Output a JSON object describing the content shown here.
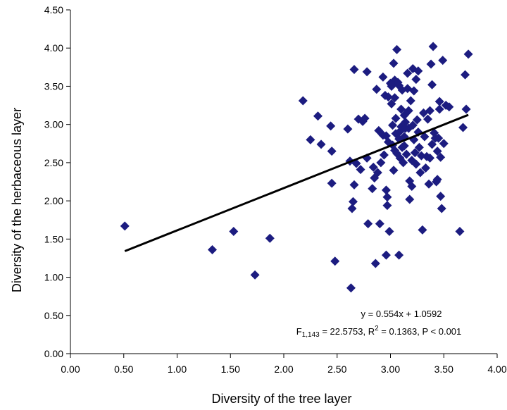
{
  "chart_data": {
    "type": "scatter",
    "xlabel": "Diversity of the tree layer",
    "ylabel": "Diversity of the herbaceous layer",
    "xlim": [
      0,
      4
    ],
    "ylim": [
      0,
      4.5
    ],
    "x_ticks": [
      "0.00",
      "0.50",
      "1.00",
      "1.50",
      "2.00",
      "2.50",
      "3.00",
      "3.50",
      "4.00"
    ],
    "y_ticks": [
      "0.00",
      "0.50",
      "1.00",
      "1.50",
      "2.00",
      "2.50",
      "3.00",
      "3.50",
      "4.00",
      "4.50"
    ],
    "grid": false,
    "marker": "diamond",
    "marker_color": "#1c1c80",
    "trendline": {
      "slope": 0.554,
      "intercept": 1.0592,
      "x_range": [
        0.51,
        3.73
      ],
      "color": "#000000"
    },
    "annotations": {
      "equation": "y = 0.554x + 1.0592",
      "stats_prefix": "F",
      "stats_subscript": "1,143",
      "stats_middle": " = 22.5753, R",
      "stats_superscript": "2",
      "stats_suffix": " = 0.1363, P < 0.001"
    },
    "points": [
      [
        0.51,
        1.67
      ],
      [
        1.33,
        1.36
      ],
      [
        1.53,
        1.6
      ],
      [
        1.73,
        1.03
      ],
      [
        1.87,
        1.51
      ],
      [
        2.18,
        3.31
      ],
      [
        2.25,
        2.8
      ],
      [
        2.32,
        3.11
      ],
      [
        2.35,
        2.74
      ],
      [
        2.44,
        2.98
      ],
      [
        2.45,
        2.65
      ],
      [
        2.45,
        2.23
      ],
      [
        2.48,
        1.21
      ],
      [
        2.6,
        2.94
      ],
      [
        2.62,
        2.52
      ],
      [
        2.63,
        0.86
      ],
      [
        2.64,
        1.9
      ],
      [
        2.65,
        1.99
      ],
      [
        2.66,
        2.21
      ],
      [
        2.66,
        3.72
      ],
      [
        2.68,
        2.49
      ],
      [
        2.7,
        3.07
      ],
      [
        2.72,
        2.41
      ],
      [
        2.74,
        3.04
      ],
      [
        2.76,
        3.08
      ],
      [
        2.78,
        3.69
      ],
      [
        2.78,
        2.56
      ],
      [
        2.79,
        1.7
      ],
      [
        2.83,
        2.16
      ],
      [
        2.84,
        2.44
      ],
      [
        2.85,
        2.3
      ],
      [
        2.86,
        1.18
      ],
      [
        2.87,
        3.46
      ],
      [
        2.88,
        2.37
      ],
      [
        2.89,
        2.92
      ],
      [
        2.9,
        1.7
      ],
      [
        2.91,
        2.5
      ],
      [
        2.93,
        3.62
      ],
      [
        2.93,
        2.86
      ],
      [
        2.94,
        2.6
      ],
      [
        2.95,
        3.38
      ],
      [
        2.96,
        2.14
      ],
      [
        2.96,
        1.29
      ],
      [
        2.97,
        2.05
      ],
      [
        2.97,
        1.94
      ],
      [
        2.98,
        3.36
      ],
      [
        2.98,
        2.77
      ],
      [
        2.99,
        1.6
      ],
      [
        3.0,
        3.54
      ],
      [
        3.01,
        3.5
      ],
      [
        3.01,
        3.27
      ],
      [
        3.02,
        2.99
      ],
      [
        3.02,
        2.73
      ],
      [
        3.03,
        2.4
      ],
      [
        3.03,
        3.8
      ],
      [
        3.04,
        3.58
      ],
      [
        3.04,
        3.35
      ],
      [
        3.05,
        3.08
      ],
      [
        3.05,
        2.88
      ],
      [
        3.06,
        3.98
      ],
      [
        3.06,
        2.62
      ],
      [
        3.07,
        3.55
      ],
      [
        3.08,
        3.51
      ],
      [
        3.08,
        1.29
      ],
      [
        3.09,
        2.91
      ],
      [
        3.09,
        2.56
      ],
      [
        3.1,
        3.2
      ],
      [
        3.1,
        2.97
      ],
      [
        3.11,
        3.45
      ],
      [
        3.11,
        2.7
      ],
      [
        3.12,
        2.5
      ],
      [
        3.13,
        3.12
      ],
      [
        3.13,
        2.84
      ],
      [
        3.14,
        3.03
      ],
      [
        3.15,
        2.61
      ],
      [
        3.16,
        3.67
      ],
      [
        3.17,
        3.18
      ],
      [
        3.17,
        2.95
      ],
      [
        3.18,
        2.26
      ],
      [
        3.18,
        2.02
      ],
      [
        3.19,
        3.31
      ],
      [
        3.2,
        2.53
      ],
      [
        3.2,
        2.19
      ],
      [
        3.21,
        3.73
      ],
      [
        3.22,
        3.44
      ],
      [
        3.22,
        2.8
      ],
      [
        3.23,
        2.63
      ],
      [
        3.24,
        3.59
      ],
      [
        3.24,
        2.48
      ],
      [
        3.25,
        3.06
      ],
      [
        3.26,
        3.7
      ],
      [
        3.27,
        2.7
      ],
      [
        3.28,
        2.37
      ],
      [
        3.29,
        2.59
      ],
      [
        3.3,
        1.62
      ],
      [
        3.31,
        3.15
      ],
      [
        3.32,
        2.84
      ],
      [
        3.33,
        2.43
      ],
      [
        3.34,
        2.58
      ],
      [
        3.35,
        3.07
      ],
      [
        3.36,
        2.22
      ],
      [
        3.37,
        3.18
      ],
      [
        3.37,
        2.56
      ],
      [
        3.38,
        3.79
      ],
      [
        3.39,
        3.52
      ],
      [
        3.39,
        2.74
      ],
      [
        3.4,
        4.02
      ],
      [
        3.41,
        2.89
      ],
      [
        3.42,
        2.82
      ],
      [
        3.43,
        2.25
      ],
      [
        3.44,
        2.28
      ],
      [
        3.44,
        2.65
      ],
      [
        3.45,
        2.82
      ],
      [
        3.46,
        3.2
      ],
      [
        3.46,
        3.3
      ],
      [
        3.47,
        2.06
      ],
      [
        3.47,
        2.57
      ],
      [
        3.48,
        1.9
      ],
      [
        3.49,
        3.84
      ],
      [
        3.5,
        2.75
      ],
      [
        3.52,
        3.25
      ],
      [
        3.55,
        3.23
      ],
      [
        3.65,
        1.6
      ],
      [
        3.68,
        2.96
      ],
      [
        3.7,
        3.65
      ],
      [
        3.71,
        3.2
      ],
      [
        3.73,
        3.92
      ],
      [
        2.96,
        2.85
      ],
      [
        3.14,
        2.95
      ],
      [
        3.26,
        2.9
      ],
      [
        3.01,
        3.52
      ],
      [
        3.08,
        2.81
      ],
      [
        3.13,
        2.72
      ],
      [
        3.21,
        2.99
      ],
      [
        3.04,
        2.66
      ],
      [
        3.16,
        3.47
      ]
    ]
  }
}
